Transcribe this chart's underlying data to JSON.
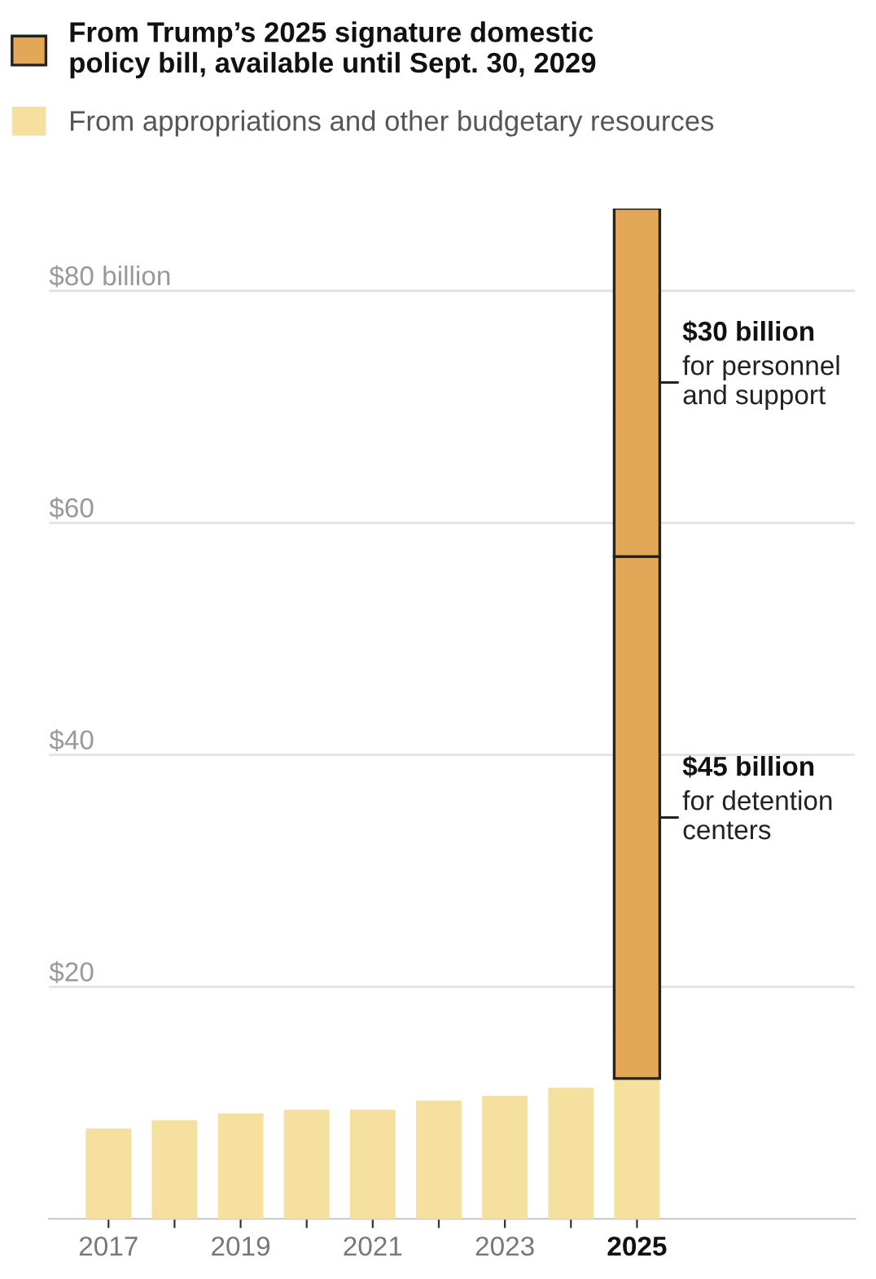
{
  "chart_data": {
    "type": "bar",
    "stacked": true,
    "categories": [
      "2017",
      null,
      "2019",
      null,
      "2021",
      null,
      "2023",
      null,
      "2025"
    ],
    "series": [
      {
        "name": "From appropriations and other budgetary resources",
        "color": "#f6e0a0",
        "values": [
          7.8,
          8.5,
          9.1,
          9.4,
          9.4,
          10.2,
          10.6,
          11.3,
          12.1
        ]
      },
      {
        "name": "From Trump’s 2025 signature domestic\npolicy bill, available until Sept. 30, 2029",
        "color": "#e3a857",
        "values": [
          null,
          null,
          null,
          null,
          null,
          null,
          null,
          null,
          45
        ]
      },
      {
        "color": "#e3a857",
        "values": [
          null,
          null,
          null,
          null,
          null,
          null,
          null,
          null,
          30
        ]
      }
    ],
    "yticks": [
      {
        "value": 20,
        "label": "$20"
      },
      {
        "value": 40,
        "label": "$40"
      },
      {
        "value": 60,
        "label": "$60"
      },
      {
        "value": 80,
        "label": "$80 billion"
      }
    ],
    "ylim": [
      0,
      87.1
    ],
    "grid": "y",
    "legend": "top left",
    "annotations": [
      "$30 billion\nfor personnel\nand support",
      "$45 billion\nfor detention\ncenters"
    ]
  }
}
